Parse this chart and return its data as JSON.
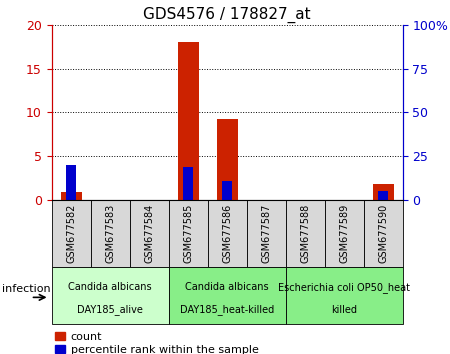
{
  "title": "GDS4576 / 178827_at",
  "samples": [
    "GSM677582",
    "GSM677583",
    "GSM677584",
    "GSM677585",
    "GSM677586",
    "GSM677587",
    "GSM677588",
    "GSM677589",
    "GSM677590"
  ],
  "count_values": [
    0.9,
    0.0,
    0.0,
    18.0,
    9.2,
    0.0,
    0.0,
    0.0,
    1.8
  ],
  "percentile_values": [
    20.0,
    0.0,
    0.0,
    19.0,
    11.0,
    0.0,
    0.0,
    0.0,
    5.0
  ],
  "left_ylim": [
    0,
    20
  ],
  "right_ylim": [
    0,
    100
  ],
  "left_yticks": [
    0,
    5,
    10,
    15,
    20
  ],
  "right_yticks": [
    0,
    25,
    50,
    75,
    100
  ],
  "right_yticklabels": [
    "0",
    "25",
    "50",
    "75",
    "100%"
  ],
  "left_yticklabels": [
    "0",
    "5",
    "10",
    "15",
    "20"
  ],
  "bar_color_red": "#cc2200",
  "bar_color_blue": "#0000cc",
  "groups": [
    {
      "label_top": "Candida albicans",
      "label_bot": "DAY185_alive",
      "start": 0,
      "end": 3,
      "color": "#ccffcc"
    },
    {
      "label_top": "Candida albicans",
      "label_bot": "DAY185_heat-killed",
      "start": 3,
      "end": 6,
      "color": "#88ee88"
    },
    {
      "label_top": "Escherichia coli OP50_heat",
      "label_bot": "killed",
      "start": 6,
      "end": 9,
      "color": "#88ee88"
    }
  ],
  "factor_label": "infection",
  "left_axis_color": "#cc0000",
  "right_axis_color": "#0000cc",
  "sample_box_color": "#d8d8d8",
  "title_fontsize": 11,
  "ylabel_fontsize": 9,
  "xlabel_fontsize": 7,
  "group_fontsize": 7,
  "legend_fontsize": 8
}
